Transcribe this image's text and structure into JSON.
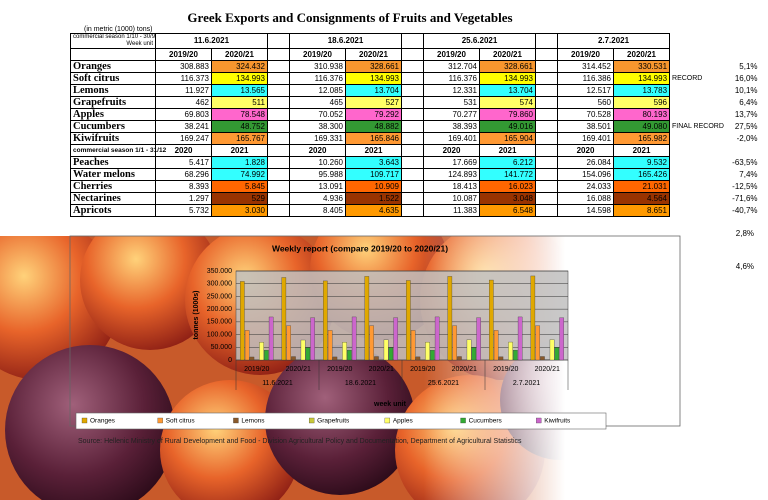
{
  "title": "Greek Exports and Consignments of Fruits and Vegetables",
  "unit_note": "(in metric (1000) tons)",
  "table": {
    "season1_label": "commercial season 1/10 - 30/9",
    "week_unit_label": "Week unit",
    "weeks": [
      "11.6.2021",
      "18.6.2021",
      "25.6.2021",
      "2.7.2021"
    ],
    "season1_cols": [
      "2019/20",
      "2020/21"
    ],
    "rows": [
      {
        "name": "Oranges",
        "values": [
          "308.883",
          "324.432",
          "310.938",
          "328.661",
          "312.704",
          "328.661",
          "314.452",
          "330.531"
        ],
        "change": "5,1%"
      },
      {
        "name": "Soft citrus",
        "values": [
          "116.373",
          "134.993",
          "116.376",
          "134.993",
          "116.376",
          "134.993",
          "116.386",
          "134.993"
        ],
        "note": "RECORD",
        "change": "16,0%"
      },
      {
        "name": "Lemons",
        "values": [
          "11.927",
          "13.565",
          "12.085",
          "13.704",
          "12.331",
          "13.704",
          "12.517",
          "13.783"
        ],
        "change": "10,1%"
      },
      {
        "name": "Grapefruits",
        "values": [
          "462",
          "511",
          "465",
          "527",
          "531",
          "574",
          "560",
          "596"
        ],
        "change": "6,4%"
      },
      {
        "name": "Apples",
        "values": [
          "69.803",
          "78.548",
          "70.052",
          "79.292",
          "70.277",
          "79.860",
          "70.528",
          "80.193"
        ],
        "change": "13,7%"
      },
      {
        "name": "Cucumbers",
        "values": [
          "38.241",
          "48.752",
          "38.300",
          "48.882",
          "38.393",
          "49.016",
          "38.501",
          "49.080"
        ],
        "note": "FINAL RECORD",
        "change": "27,5%"
      },
      {
        "name": "Kiwifruits",
        "values": [
          "169.247",
          "165.767",
          "169.331",
          "165.846",
          "169.401",
          "165.904",
          "169.401",
          "165.982"
        ],
        "change": "-2,0%"
      }
    ],
    "season2_label": "commercial season 1/1 - 31/12",
    "season2_cols": [
      "2020",
      "2021"
    ],
    "rows2": [
      {
        "name": "Peaches",
        "values": [
          "5.417",
          "1.828",
          "10.260",
          "3.643",
          "17.669",
          "6.212",
          "26.084",
          "9.532"
        ],
        "change": "-63,5%"
      },
      {
        "name": "Water melons",
        "values": [
          "68.296",
          "74.992",
          "95.988",
          "109.717",
          "124.893",
          "141.772",
          "154.096",
          "165.426"
        ],
        "change": "7,4%"
      },
      {
        "name": "Cherries",
        "values": [
          "8.393",
          "5.845",
          "13.091",
          "10.909",
          "18.413",
          "16.023",
          "24.033",
          "21.031"
        ],
        "change": "-12,5%"
      },
      {
        "name": "Nectarines",
        "values": [
          "1.297",
          "529",
          "4.936",
          "1.522",
          "10.087",
          "3.048",
          "16.088",
          "4.564"
        ],
        "change": "-71,6%"
      },
      {
        "name": "Apricots",
        "values": [
          "5.732",
          "3.030",
          "8.405",
          "4.635",
          "11.383",
          "6.548",
          "14.598",
          "8.651"
        ],
        "change": "-40,7%"
      }
    ]
  },
  "extra_changes": [
    "2,8%",
    "4,6%"
  ],
  "chart_data": {
    "type": "bar",
    "title": "Weekly report (compare 2019/20 to 2020/21)",
    "y_label": "tonnes (1000s)",
    "x_label": "week unit",
    "categories": [
      "2019/20",
      "2020/21",
      "2019/20",
      "2020/21",
      "2019/20",
      "2020/21",
      "2019/20",
      "2020/21"
    ],
    "groups": [
      "11.6.2021",
      "18.6.2021",
      "25.6.2021",
      "2.7.2021"
    ],
    "ylim": [
      0,
      350000
    ],
    "yticks": [
      0,
      {
        "value": 50000,
        "label": "50.000"
      },
      {
        "value": 100000,
        "label": "100.000"
      },
      {
        "value": 150000,
        "label": "150.000"
      },
      {
        "value": 200000,
        "label": "200.000"
      },
      {
        "value": 250000,
        "label": "250.000"
      },
      {
        "value": 300000,
        "label": "300.000"
      },
      {
        "value": 350000,
        "label": "350.000"
      }
    ],
    "grid": true,
    "legend": "bottom",
    "series": [
      {
        "name": "Oranges",
        "color": "#e0a800",
        "values": [
          308883,
          324432,
          310938,
          328661,
          312704,
          328661,
          314452,
          330531
        ]
      },
      {
        "name": "Soft citrus",
        "color": "#ff9933",
        "values": [
          116373,
          134993,
          116376,
          134993,
          116376,
          134993,
          116386,
          134993
        ]
      },
      {
        "name": "Lemons",
        "color": "#8a5a2b",
        "values": [
          11927,
          13565,
          12085,
          13704,
          12331,
          13704,
          12517,
          13783
        ]
      },
      {
        "name": "Grapefruits",
        "color": "#c8c83a",
        "values": [
          462,
          511,
          465,
          527,
          531,
          574,
          560,
          596
        ]
      },
      {
        "name": "Apples",
        "color": "#ffff66",
        "values": [
          69803,
          78548,
          70052,
          79292,
          70277,
          79860,
          70528,
          80193
        ]
      },
      {
        "name": "Cucumbers",
        "color": "#33aa33",
        "values": [
          38241,
          48752,
          38300,
          48882,
          38393,
          49016,
          38501,
          49080
        ]
      },
      {
        "name": "Kiwifruits",
        "color": "#cc66cc",
        "values": [
          169247,
          165767,
          169331,
          165846,
          169401,
          165904,
          169401,
          165982
        ]
      }
    ]
  },
  "source": "Source: Hellenic Ministry of Rural Development and Food - Division Agricultural Policy and Documentation, Department of Agricultural Statistics"
}
